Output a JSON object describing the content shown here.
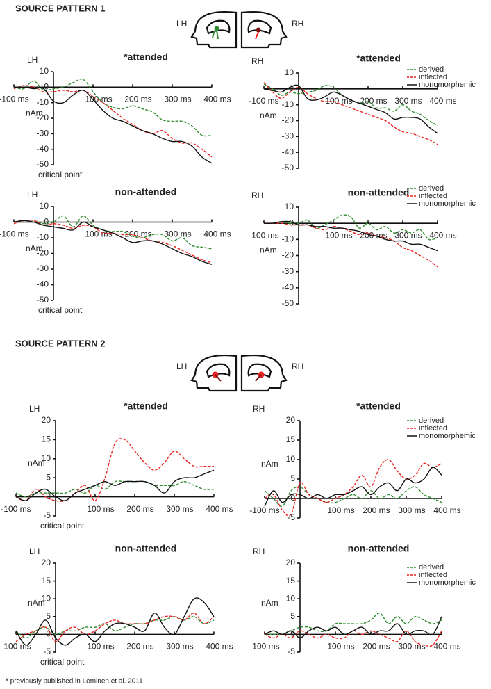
{
  "sections": [
    {
      "title": "SOURCE PATTERN 1",
      "hemispheres": [
        "LH",
        "RH"
      ]
    },
    {
      "title": "SOURCE PATTERN 2",
      "hemispheres": [
        "LH",
        "RH"
      ]
    }
  ],
  "footnote": "* previously published in Leminen et al. 2011",
  "chart_data": [
    {
      "type": "line",
      "title": "*attended",
      "hemisphere": "LH",
      "y_label": "nAm",
      "annotation": "critical point",
      "x": [
        -100,
        -75,
        -50,
        -25,
        0,
        25,
        50,
        75,
        100,
        125,
        150,
        175,
        200,
        225,
        250,
        275,
        300,
        325,
        350,
        375,
        400
      ],
      "xlim": [
        -100,
        400
      ],
      "xticks": [
        {
          "value": -100,
          "label": "-100 ms"
        },
        {
          "value": 100,
          "label": "100 ms"
        },
        {
          "value": 200,
          "label": "200 ms"
        },
        {
          "value": 300,
          "label": "300 ms"
        },
        {
          "value": 400,
          "label": "400 ms"
        }
      ],
      "ylim": [
        -50,
        10
      ],
      "yticks": [
        10,
        0,
        -10,
        -20,
        -30,
        -40,
        -50
      ],
      "series": [
        {
          "color": "#2e8b2e",
          "dashed": true,
          "values": [
            0,
            -1,
            4,
            -2,
            -1,
            0,
            3,
            5,
            -3,
            -10,
            -13,
            -14,
            -12,
            -14,
            -16,
            -21,
            -22,
            -22,
            -25,
            -31,
            -31
          ]
        },
        {
          "color": "#e8231f",
          "dashed": true,
          "values": [
            -1,
            1,
            0,
            -3,
            -3,
            -2,
            -3,
            -2,
            -6,
            -10,
            -15,
            -20,
            -24,
            -28,
            -30,
            -28,
            -33,
            -36,
            -36,
            -40,
            -45
          ]
        },
        {
          "color": "#111111",
          "dashed": false,
          "values": [
            0,
            0,
            -1,
            -1,
            -9,
            -10,
            -5,
            -2,
            -8,
            -15,
            -20,
            -22,
            -25,
            -28,
            -30,
            -33,
            -35,
            -35,
            -38,
            -45,
            -49
          ]
        }
      ]
    },
    {
      "type": "line",
      "title": "*attended",
      "hemisphere": "RH",
      "y_label": "nAm",
      "x": [
        -100,
        -75,
        -50,
        -25,
        0,
        25,
        50,
        75,
        100,
        125,
        150,
        175,
        200,
        225,
        250,
        275,
        300,
        325,
        350,
        375,
        400
      ],
      "xlim": [
        -100,
        400
      ],
      "xticks": [
        {
          "value": -100,
          "label": "-100 ms"
        },
        {
          "value": 100,
          "label": "100 ms"
        },
        {
          "value": 200,
          "label": "200 ms"
        },
        {
          "value": 300,
          "label": "300 ms"
        },
        {
          "value": 400,
          "label": "400 ms"
        }
      ],
      "ylim": [
        -50,
        10
      ],
      "yticks": [
        10,
        0,
        -10,
        -20,
        -30,
        -40,
        -50
      ],
      "legend": "upper right",
      "series": [
        {
          "name": "derived",
          "color": "#2e8b2e",
          "dashed": true,
          "values": [
            3,
            0,
            -4,
            -2,
            -3,
            -2,
            -1,
            2,
            1,
            -4,
            -7,
            -9,
            -8,
            -12,
            -12,
            -14,
            -10,
            -14,
            -16,
            -20,
            -23
          ]
        },
        {
          "name": "inflected",
          "color": "#e8231f",
          "dashed": true,
          "values": [
            4,
            -2,
            -6,
            -2,
            1,
            -3,
            -6,
            -8,
            -8,
            -10,
            -12,
            -14,
            -16,
            -18,
            -20,
            -24,
            -27,
            -28,
            -30,
            -32,
            -35
          ]
        },
        {
          "name": "monomorphemic",
          "color": "#111111",
          "dashed": false,
          "values": [
            0,
            -1,
            -2,
            1,
            2,
            -6,
            -7,
            -5,
            -2,
            -4,
            -7,
            -9,
            -11,
            -13,
            -15,
            -19,
            -18,
            -18,
            -19,
            -24,
            -28
          ]
        }
      ]
    },
    {
      "type": "line",
      "title": "non-attended",
      "hemisphere": "LH",
      "y_label": "nAm",
      "annotation": "critical point",
      "x": [
        -100,
        -75,
        -50,
        -25,
        0,
        25,
        50,
        75,
        100,
        125,
        150,
        175,
        200,
        225,
        250,
        275,
        300,
        325,
        350,
        375,
        400
      ],
      "xlim": [
        -100,
        400
      ],
      "xticks": [
        {
          "value": -100,
          "label": "-100 ms"
        },
        {
          "value": 100,
          "label": "100 ms"
        },
        {
          "value": 200,
          "label": "200 ms"
        },
        {
          "value": 300,
          "label": "300 ms"
        },
        {
          "value": 400,
          "label": "400 ms"
        }
      ],
      "ylim": [
        -50,
        10
      ],
      "yticks": [
        10,
        0,
        -10,
        -20,
        -30,
        -40,
        -50
      ],
      "series": [
        {
          "color": "#2e8b2e",
          "dashed": true,
          "values": [
            0,
            1,
            1,
            -1,
            0,
            4,
            -3,
            4,
            -2,
            -5,
            -6,
            -6,
            -9,
            -10,
            -8,
            -8,
            -12,
            -10,
            -15,
            -16,
            -17
          ]
        },
        {
          "color": "#e8231f",
          "dashed": true,
          "values": [
            -1,
            1,
            1,
            -2,
            -1,
            -2,
            -4,
            -2,
            -3,
            -7,
            -7,
            -8,
            -8,
            -10,
            -12,
            -13,
            -15,
            -18,
            -21,
            -24,
            -26
          ]
        },
        {
          "color": "#111111",
          "dashed": false,
          "values": [
            0,
            1,
            0,
            -2,
            -3,
            -4,
            -5,
            0,
            -3,
            -5,
            -7,
            -10,
            -13,
            -12,
            -12,
            -14,
            -17,
            -20,
            -22,
            -25,
            -27
          ]
        }
      ]
    },
    {
      "type": "line",
      "title": "non-attended",
      "hemisphere": "RH",
      "y_label": "nAm",
      "x": [
        -100,
        -75,
        -50,
        -25,
        0,
        25,
        50,
        75,
        100,
        125,
        150,
        175,
        200,
        225,
        250,
        275,
        300,
        325,
        350,
        375,
        400
      ],
      "xlim": [
        -100,
        400
      ],
      "xticks": [
        {
          "value": -100,
          "label": "-100 ms"
        },
        {
          "value": 100,
          "label": "100 ms"
        },
        {
          "value": 200,
          "label": "200 ms"
        },
        {
          "value": 300,
          "label": "300 ms"
        },
        {
          "value": 400,
          "label": "400 ms"
        }
      ],
      "ylim": [
        -50,
        10
      ],
      "yticks": [
        10,
        0,
        -10,
        -20,
        -30,
        -40,
        -50
      ],
      "legend": "upper right",
      "series": [
        {
          "name": "derived",
          "color": "#2e8b2e",
          "dashed": true,
          "values": [
            0,
            0,
            1,
            0,
            0,
            2,
            -3,
            -1,
            2,
            5,
            4,
            -3,
            0,
            -4,
            -2,
            -6,
            -4,
            -6,
            -4,
            -10,
            -9
          ]
        },
        {
          "name": "inflected",
          "color": "#e8231f",
          "dashed": true,
          "values": [
            0,
            0,
            0,
            -1,
            -1,
            -1,
            -3,
            -4,
            -2,
            -3,
            -5,
            -7,
            -6,
            -8,
            -9,
            -11,
            -15,
            -17,
            -20,
            -23,
            -27
          ]
        },
        {
          "name": "monomorphemic",
          "color": "#111111",
          "dashed": false,
          "values": [
            0,
            0,
            1,
            1,
            -1,
            -1,
            -2,
            -2,
            -3,
            -3,
            -4,
            -5,
            -7,
            -8,
            -10,
            -11,
            -11,
            -13,
            -13,
            -15,
            -17
          ]
        }
      ]
    },
    {
      "type": "line",
      "title": "*attended",
      "hemisphere": "LH",
      "y_label": "nAm",
      "annotation": "critical point",
      "x": [
        -100,
        -75,
        -50,
        -25,
        0,
        25,
        50,
        75,
        100,
        125,
        150,
        175,
        200,
        225,
        250,
        275,
        300,
        325,
        350,
        375,
        400
      ],
      "xlim": [
        -100,
        400
      ],
      "xticks": [
        {
          "value": -100,
          "label": "-100 ms"
        },
        {
          "value": 100,
          "label": "100 ms"
        },
        {
          "value": 200,
          "label": "200 ms"
        },
        {
          "value": 300,
          "label": "300 ms"
        },
        {
          "value": 400,
          "label": "400 ms"
        }
      ],
      "ylim": [
        -5,
        20
      ],
      "yticks": [
        20,
        15,
        10,
        5,
        0,
        -5
      ],
      "series": [
        {
          "color": "#2e8b2e",
          "dashed": true,
          "values": [
            1,
            0,
            1,
            1,
            1,
            1,
            2,
            1,
            3,
            2,
            4,
            4,
            4,
            4,
            3,
            3,
            3,
            4,
            3,
            2,
            2
          ]
        },
        {
          "color": "#e8231f",
          "dashed": true,
          "values": [
            0,
            -1,
            2,
            0,
            -1,
            -1,
            1,
            3,
            -1,
            5,
            14,
            15,
            12,
            9,
            7,
            9,
            12,
            10,
            8,
            8,
            8
          ]
        },
        {
          "color": "#111111",
          "dashed": false,
          "values": [
            0,
            -1,
            1,
            2,
            0,
            -1,
            1,
            2,
            3,
            4,
            3,
            4,
            4,
            4,
            3,
            1,
            4,
            5,
            5,
            6,
            7
          ]
        }
      ]
    },
    {
      "type": "line",
      "title": "*attended",
      "hemisphere": "RH",
      "y_label": "nAm",
      "x": [
        -100,
        -75,
        -50,
        -25,
        0,
        25,
        50,
        75,
        100,
        125,
        150,
        175,
        200,
        225,
        250,
        275,
        300,
        325,
        350,
        375,
        400
      ],
      "xlim": [
        -100,
        400
      ],
      "xticks": [
        {
          "value": -100,
          "label": "-100 ms"
        },
        {
          "value": 100,
          "label": "100 ms"
        },
        {
          "value": 200,
          "label": "200 ms"
        },
        {
          "value": 300,
          "label": "300 ms"
        },
        {
          "value": 400,
          "label": "400 ms"
        }
      ],
      "ylim": [
        -5,
        20
      ],
      "yticks": [
        20,
        15,
        10,
        5,
        0,
        -5
      ],
      "legend": "upper right",
      "series": [
        {
          "name": "derived",
          "color": "#2e8b2e",
          "dashed": true,
          "values": [
            2,
            0,
            -2,
            2,
            3,
            1,
            0,
            -1,
            -1,
            0,
            1,
            0,
            2,
            0,
            1,
            0,
            2,
            3,
            1,
            0,
            -1
          ]
        },
        {
          "name": "inflected",
          "color": "#e8231f",
          "dashed": true,
          "values": [
            0,
            1,
            -3,
            -4,
            4,
            1,
            0,
            -1,
            0,
            1,
            3,
            6,
            3,
            8,
            10,
            7,
            5,
            6,
            9,
            8,
            9
          ]
        },
        {
          "name": "monomorphemic",
          "color": "#111111",
          "dashed": false,
          "values": [
            -2,
            2,
            -1,
            1,
            1,
            0,
            1,
            0,
            1,
            1,
            2,
            3,
            1,
            3,
            4,
            2,
            5,
            4,
            5,
            8,
            6
          ]
        }
      ]
    },
    {
      "type": "line",
      "title": "non-attended",
      "hemisphere": "LH",
      "y_label": "nAm",
      "annotation": "critical point",
      "x": [
        -100,
        -75,
        -50,
        -25,
        0,
        25,
        50,
        75,
        100,
        125,
        150,
        175,
        200,
        225,
        250,
        275,
        300,
        325,
        350,
        375,
        400
      ],
      "xlim": [
        -100,
        400
      ],
      "xticks": [
        {
          "value": -100,
          "label": "-100 ms"
        },
        {
          "value": 100,
          "label": "100 ms"
        },
        {
          "value": 200,
          "label": "200 ms"
        },
        {
          "value": 300,
          "label": "300 ms"
        },
        {
          "value": 400,
          "label": "400 ms"
        }
      ],
      "ylim": [
        -5,
        20
      ],
      "yticks": [
        20,
        15,
        10,
        5,
        0,
        -5
      ],
      "series": [
        {
          "color": "#2e8b2e",
          "dashed": true,
          "values": [
            1,
            -1,
            1,
            2,
            0,
            1,
            1,
            2,
            2,
            3,
            1,
            2,
            3,
            3,
            4,
            4,
            5,
            4,
            5,
            3,
            4
          ]
        },
        {
          "color": "#e8231f",
          "dashed": true,
          "values": [
            -2,
            0,
            1,
            2,
            -2,
            1,
            2,
            0,
            1,
            3,
            4,
            3,
            3,
            3,
            4,
            5,
            5,
            4,
            6,
            3,
            5
          ]
        },
        {
          "color": "#111111",
          "dashed": false,
          "values": [
            1,
            -3,
            0,
            4,
            -1,
            -3,
            -1,
            0,
            -2,
            1,
            3,
            3,
            2,
            1,
            6,
            2,
            0,
            5,
            10,
            9,
            5
          ]
        }
      ]
    },
    {
      "type": "line",
      "title": "non-attended",
      "hemisphere": "RH",
      "y_label": "nAm",
      "x": [
        -100,
        -75,
        -50,
        -25,
        0,
        25,
        50,
        75,
        100,
        125,
        150,
        175,
        200,
        225,
        250,
        275,
        300,
        325,
        350,
        375,
        400
      ],
      "xlim": [
        -100,
        400
      ],
      "xticks": [
        {
          "value": -100,
          "label": "-100 ms"
        },
        {
          "value": 100,
          "label": "100 ms"
        },
        {
          "value": 200,
          "label": "200 ms"
        },
        {
          "value": 300,
          "label": "300 ms"
        },
        {
          "value": 400,
          "label": "400 ms"
        }
      ],
      "ylim": [
        -5,
        20
      ],
      "yticks": [
        20,
        15,
        10,
        5,
        0,
        -5
      ],
      "legend": "upper right",
      "series": [
        {
          "name": "derived",
          "color": "#2e8b2e",
          "dashed": true,
          "values": [
            0,
            0,
            0,
            1,
            2,
            2,
            1,
            1,
            3,
            3,
            3,
            3,
            4,
            6,
            3,
            5,
            3,
            5,
            4,
            3,
            4
          ]
        },
        {
          "name": "inflected",
          "color": "#e8231f",
          "dashed": true,
          "values": [
            0,
            -1,
            0,
            -1,
            1,
            0,
            -1,
            0,
            -1,
            -1,
            1,
            0,
            1,
            0,
            -1,
            -2,
            1,
            -2,
            -3,
            -3,
            1
          ]
        },
        {
          "name": "monomorphemic",
          "color": "#111111",
          "dashed": false,
          "values": [
            0,
            1,
            0,
            1,
            -1,
            1,
            2,
            1,
            2,
            0,
            1,
            2,
            0,
            1,
            1,
            3,
            0,
            1,
            1,
            0,
            5
          ]
        }
      ]
    }
  ]
}
